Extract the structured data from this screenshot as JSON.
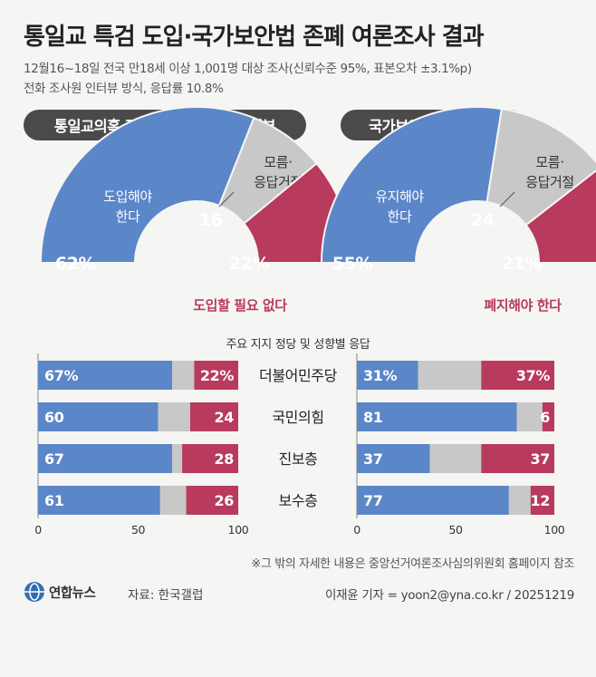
{
  "title": "통일교 특검 도입·국가보안법 존폐 여론조사 결과",
  "subtitle_line1": "12월16~18일 전국 만18세 이상 1,001명 대상 조사(신뢰수준 95%, 표본오차 ±3.1%p)",
  "subtitle_line2": "전화 조사원 인터뷰 방식, 응답률 10.8%",
  "middle_label": "주요 지지 정당 및 성향별 응답",
  "footnote": "※그 밖의 자세한 내용은 중앙선거여론조사심의위원회 홈페이지 참조",
  "brand": "연합뉴스",
  "source": "자료: 한국갤럽",
  "credit": "이재윤 기자 = yoon2@yna.co.kr / 20251219",
  "colors": {
    "blue": "#5b86c8",
    "gray": "#c8c8c8",
    "red": "#b83a5c",
    "pill": "#4a4a4a"
  },
  "chart_data": [
    {
      "type": "pie",
      "title": "통일교의혹 관련 수사 특검 도입 여부",
      "slices": [
        {
          "label": "도입해야 한다",
          "value": 62,
          "value_label": "62%"
        },
        {
          "label": "모름·응답거절",
          "value": 16,
          "value_label": "16"
        },
        {
          "label": "도입할 필요 없다",
          "value": 22,
          "value_label": "22%"
        }
      ]
    },
    {
      "type": "pie",
      "title": "국가보안법 유지·폐지",
      "slices": [
        {
          "label": "유지해야 한다",
          "value": 55,
          "value_label": "55%"
        },
        {
          "label": "모름·응답거절",
          "value": 24,
          "value_label": "24"
        },
        {
          "label": "폐지해야 한다",
          "value": 21,
          "value_label": "21%"
        }
      ]
    },
    {
      "type": "bar",
      "orientation": "horizontal-stacked",
      "categories": [
        "더불어민주당",
        "국민의힘",
        "진보층",
        "보수층"
      ],
      "series": [
        {
          "name": "도입해야 한다",
          "values": [
            67,
            60,
            67,
            61
          ],
          "labels": [
            "67%",
            "60",
            "67",
            "61"
          ]
        },
        {
          "name": "모름·응답거절",
          "values": [
            11,
            16,
            5,
            13
          ],
          "labels": [
            "",
            "",
            "",
            ""
          ]
        },
        {
          "name": "도입할 필요 없다",
          "values": [
            22,
            24,
            28,
            26
          ],
          "labels": [
            "22%",
            "24",
            "28",
            "26"
          ]
        }
      ],
      "xlim": [
        0,
        100
      ],
      "xticks": [
        "0",
        "50",
        "100"
      ]
    },
    {
      "type": "bar",
      "orientation": "horizontal-stacked",
      "categories": [
        "더불어민주당",
        "국민의힘",
        "진보층",
        "보수층"
      ],
      "series": [
        {
          "name": "유지해야 한다",
          "values": [
            31,
            81,
            37,
            77
          ],
          "labels": [
            "31%",
            "81",
            "37",
            "77"
          ]
        },
        {
          "name": "모름·응답거절",
          "values": [
            32,
            13,
            26,
            11
          ],
          "labels": [
            "",
            "",
            "",
            ""
          ]
        },
        {
          "name": "폐지해야 한다",
          "values": [
            37,
            6,
            37,
            12
          ],
          "labels": [
            "37%",
            "6",
            "37",
            "12"
          ]
        }
      ],
      "xlim": [
        0,
        100
      ],
      "xticks": [
        "0",
        "50",
        "100"
      ]
    }
  ]
}
